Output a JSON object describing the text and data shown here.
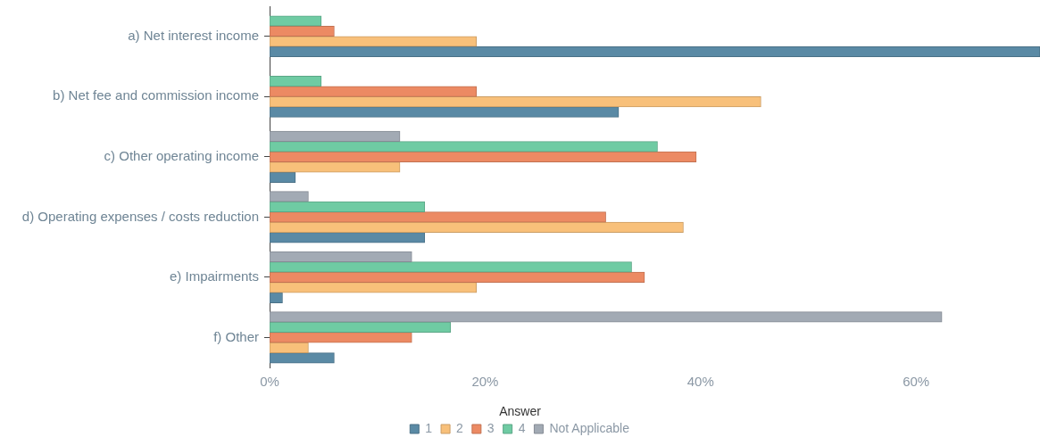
{
  "chart_data": {
    "type": "bar",
    "orientation": "horizontal",
    "categories": [
      "a) Net interest income",
      "b) Net fee and commission income",
      "c) Other operating income",
      "d) Operating expenses / costs reduction",
      "e) Impairments",
      "f) Other"
    ],
    "series": [
      {
        "name": "1",
        "color": "#5a8aa5",
        "values": [
          71.5,
          32.4,
          2.4,
          14.4,
          1.2,
          6.0
        ]
      },
      {
        "name": "2",
        "color": "#f8c07a",
        "values": [
          19.2,
          45.6,
          12.1,
          38.4,
          19.2,
          3.6
        ]
      },
      {
        "name": "3",
        "color": "#ec8a63",
        "values": [
          6.0,
          19.2,
          39.6,
          31.2,
          34.8,
          13.2
        ]
      },
      {
        "name": "4",
        "color": "#6fcba3",
        "values": [
          4.8,
          4.8,
          36.0,
          14.4,
          33.6,
          16.8
        ]
      },
      {
        "name": "Not Applicable",
        "color": "#a2aab4",
        "values": [
          null,
          null,
          12.1,
          3.6,
          13.2,
          62.4
        ]
      }
    ],
    "xlim": [
      0,
      71.5
    ],
    "xticks": [
      {
        "value": 0,
        "label": "0%"
      },
      {
        "value": 20,
        "label": "20%"
      },
      {
        "value": 40,
        "label": "40%"
      },
      {
        "value": 60,
        "label": "60%"
      }
    ],
    "grid": false,
    "legend": "bottom",
    "legend_title": "Answer"
  }
}
